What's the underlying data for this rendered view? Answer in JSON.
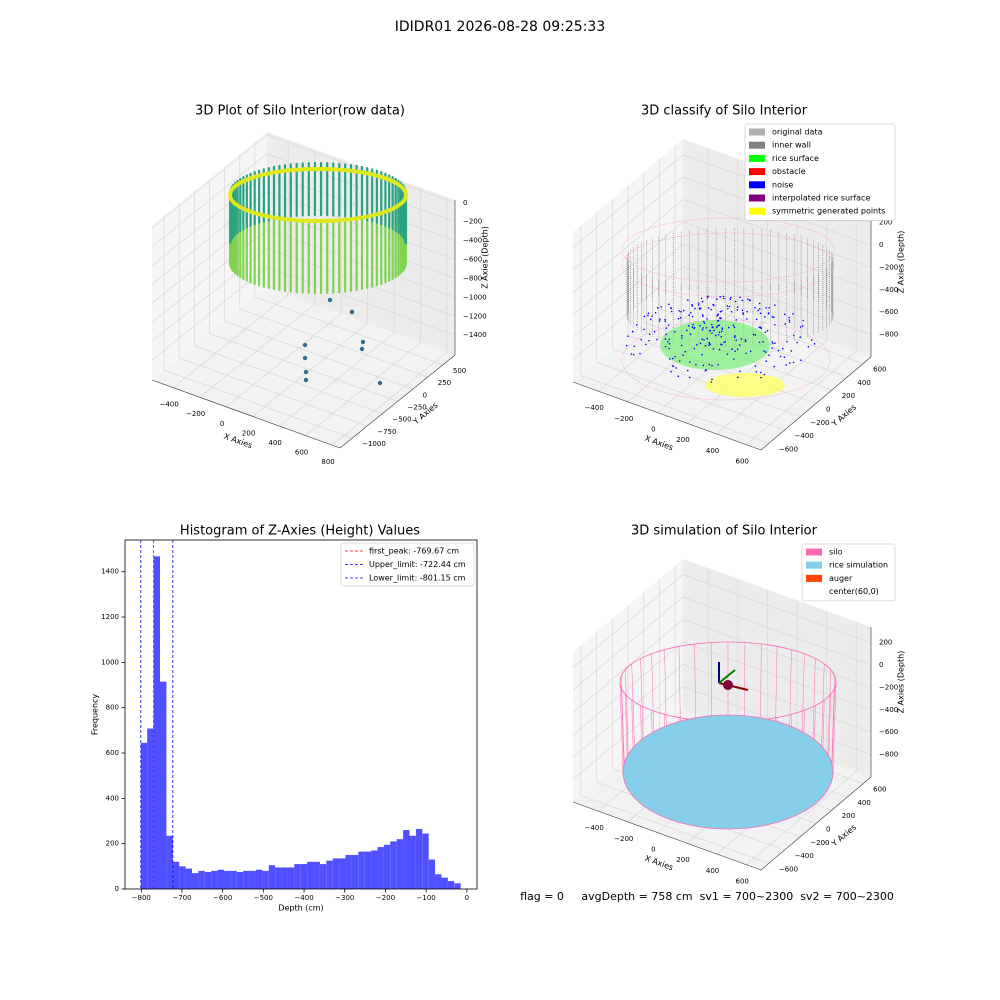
{
  "title": "IDIDR01 2026-08-28 09:25:33",
  "footer": "flag = 0     avgDepth = 758 cm  sv1 = 700~2300  sv2 = 700~2300",
  "chart_data": [
    {
      "type": "scatter3d",
      "title": "3D Plot of Silo Interior(row data)",
      "xlabel": "X Axies",
      "ylabel": "Y Axies",
      "zlabel": "Z Axies (Depth)",
      "xlim": [
        -560,
        860
      ],
      "ylim": [
        -1200,
        700
      ],
      "zlim": [
        -1610,
        30
      ],
      "xticks": [
        {
          "value": -400,
          "label": "−400"
        },
        {
          "value": -200,
          "label": "−200"
        },
        0,
        200,
        400,
        600,
        800
      ],
      "yticks": [
        {
          "value": -1000,
          "label": "−1000"
        },
        {
          "value": -750,
          "label": "−750"
        },
        {
          "value": -500,
          "label": "−500"
        },
        {
          "value": -250,
          "label": "−250"
        },
        0,
        250,
        500
      ],
      "zticks": [
        {
          "value": -1400,
          "label": "−1400"
        },
        {
          "value": -1200,
          "label": "−1200"
        },
        {
          "value": -1000,
          "label": "−1000"
        },
        {
          "value": -800,
          "label": "−800"
        },
        {
          "value": -600,
          "label": "−600"
        },
        {
          "value": -400,
          "label": "−400"
        },
        {
          "value": -200,
          "label": "−200"
        },
        0
      ]
    },
    {
      "type": "scatter3d",
      "title": "3D classify of Silo Interior",
      "xlabel": "X Axies",
      "ylabel": "Y Axies",
      "zlabel": "Z Axies (Depth)",
      "xlim": [
        -570,
        700
      ],
      "ylim": [
        -700,
        700
      ],
      "zlim": [
        -1000,
        340
      ],
      "xticks": [
        {
          "value": -400,
          "label": "−400"
        },
        {
          "value": -200,
          "label": "−200"
        },
        0,
        200,
        400,
        600
      ],
      "yticks": [
        {
          "value": -600,
          "label": "−600"
        },
        {
          "value": -400,
          "label": "−400"
        },
        {
          "value": -200,
          "label": "−200"
        },
        0,
        200,
        400,
        600
      ],
      "zticks": [
        {
          "value": -800,
          "label": "−800"
        },
        {
          "value": -600,
          "label": "−600"
        },
        {
          "value": -400,
          "label": "−400"
        },
        {
          "value": -200,
          "label": "−200"
        },
        0,
        200
      ],
      "legend": [
        {
          "name": "original data",
          "color": "#b0b0b0"
        },
        {
          "name": "inner wall",
          "color": "#808080"
        },
        {
          "name": "rice surface",
          "color": "#00ff00"
        },
        {
          "name": "obstacle",
          "color": "#ff0000"
        },
        {
          "name": "noise",
          "color": "#0000ff"
        },
        {
          "name": "interpolated rice surface",
          "color": "#800080"
        },
        {
          "name": "symmetric generated points",
          "color": "#ffff00"
        }
      ]
    },
    {
      "type": "histogram",
      "title": "Histogram of Z-Axies (Height) Values",
      "xlabel": "Depth (cm)",
      "ylabel": "Frequency",
      "color": "#5050ff",
      "xlim": [
        -840,
        25
      ],
      "ylim": [
        0,
        1540
      ],
      "xticks": [
        {
          "value": -800,
          "label": "−800"
        },
        {
          "value": -700,
          "label": "−700"
        },
        {
          "value": -600,
          "label": "−600"
        },
        {
          "value": -500,
          "label": "−500"
        },
        {
          "value": -400,
          "label": "−400"
        },
        {
          "value": -300,
          "label": "−300"
        },
        {
          "value": -200,
          "label": "−200"
        },
        {
          "value": -100,
          "label": "−100"
        },
        0
      ],
      "yticks": [
        0,
        200,
        400,
        600,
        800,
        1000,
        1200,
        1400
      ],
      "bins": [
        -801.15,
        -785.43,
        -769.71,
        -753.99,
        -738.27,
        -722.55,
        -706.83,
        -691.11,
        -675.39,
        -659.67,
        -643.95,
        -628.23,
        -612.51,
        -596.79,
        -581.07,
        -565.35,
        -549.63,
        -533.91,
        -518.19,
        -502.47,
        -486.75,
        -471.03,
        -455.31,
        -439.59,
        -423.87,
        -408.15,
        -392.43,
        -376.71,
        -360.99,
        -345.27,
        -329.55,
        -313.83,
        -298.11,
        -282.39,
        -266.67,
        -250.95,
        -235.23,
        -219.51,
        -203.79,
        -188.07,
        -172.35,
        -156.63,
        -140.91,
        -125.19,
        -109.47,
        -93.75,
        -78.03,
        -62.31,
        -46.59,
        -30.87,
        -15.15
      ],
      "values": [
        645,
        708,
        1468,
        915,
        235,
        120,
        100,
        90,
        70,
        80,
        75,
        80,
        85,
        80,
        80,
        75,
        80,
        80,
        85,
        80,
        105,
        95,
        95,
        95,
        110,
        110,
        120,
        120,
        110,
        125,
        135,
        135,
        150,
        150,
        165,
        165,
        170,
        185,
        195,
        210,
        220,
        260,
        235,
        265,
        245,
        130,
        65,
        50,
        35,
        25
      ],
      "vlines": [
        {
          "name": "first_peak: -769.67 cm",
          "color": "#ff0000",
          "value": -769.67
        },
        {
          "name": "Upper_limit: -722.44 cm",
          "color": "#0000ff",
          "value": -722.44
        },
        {
          "name": "Lower_limit: -801.15 cm",
          "color": "#0000ff",
          "value": -801.15
        }
      ]
    },
    {
      "type": "scatter3d",
      "title": "3D simulation of Silo Interior",
      "xlabel": "X Axies",
      "ylabel": "Y Axies",
      "zlabel": "Z Axies (Depth)",
      "xlim": [
        -570,
        700
      ],
      "ylim": [
        -700,
        700
      ],
      "zlim": [
        -1000,
        340
      ],
      "xticks": [
        {
          "value": -400,
          "label": "−400"
        },
        {
          "value": -200,
          "label": "−200"
        },
        0,
        200,
        400,
        600
      ],
      "yticks": [
        {
          "value": -600,
          "label": "−600"
        },
        {
          "value": -400,
          "label": "−400"
        },
        {
          "value": -200,
          "label": "−200"
        },
        0,
        200,
        400,
        600
      ],
      "zticks": [
        {
          "value": -800,
          "label": "−800"
        },
        {
          "value": -600,
          "label": "−600"
        },
        {
          "value": -400,
          "label": "−400"
        },
        {
          "value": -200,
          "label": "−200"
        },
        0,
        200
      ],
      "legend": [
        {
          "name": "silo",
          "color": "#ff69b4"
        },
        {
          "name": "rice simulation",
          "color": "#87ceeb"
        },
        {
          "name": "auger",
          "color": "#ff4500"
        },
        {
          "name": "center(60,0)",
          "color": "#ffffff"
        }
      ]
    }
  ]
}
